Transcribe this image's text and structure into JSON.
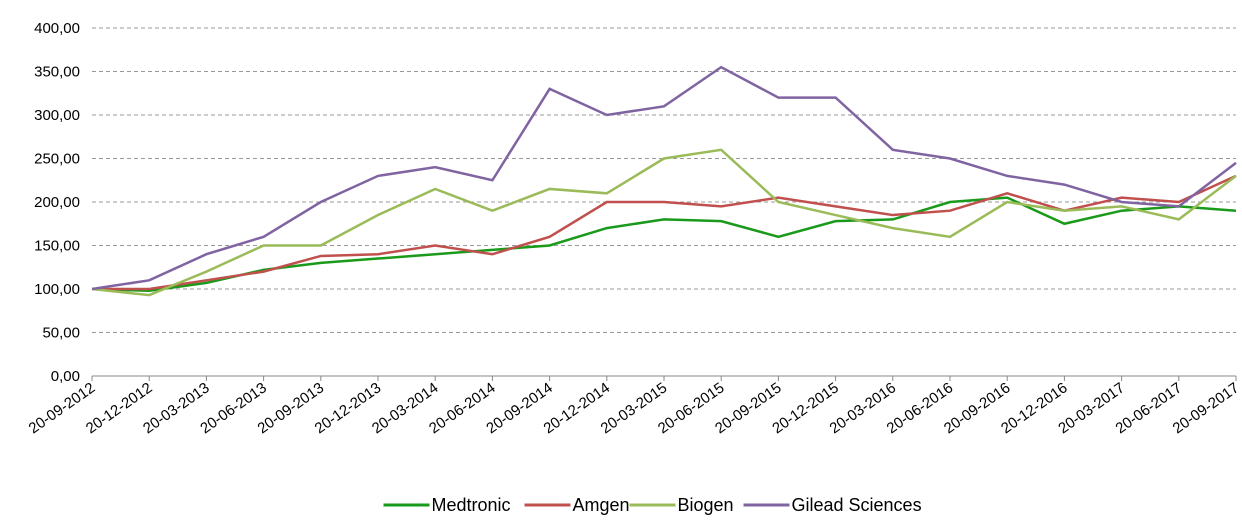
{
  "chart_data": {
    "type": "line",
    "categories": [
      "20-09-2012",
      "20-12-2012",
      "20-03-2013",
      "20-06-2013",
      "20-09-2013",
      "20-12-2013",
      "20-03-2014",
      "20-06-2014",
      "20-09-2014",
      "20-12-2014",
      "20-03-2015",
      "20-06-2015",
      "20-09-2015",
      "20-12-2015",
      "20-03-2016",
      "20-06-2016",
      "20-09-2016",
      "20-12-2016",
      "20-03-2017",
      "20-06-2017",
      "20-09-2017"
    ],
    "series": [
      {
        "name": "Medtronic",
        "color": "#1a9a1a",
        "values": [
          100,
          98,
          107,
          122,
          130,
          135,
          140,
          145,
          150,
          170,
          180,
          178,
          160,
          178,
          180,
          200,
          205,
          175,
          190,
          195,
          190
        ]
      },
      {
        "name": "Amgen",
        "color": "#c0504d",
        "values": [
          100,
          100,
          110,
          120,
          138,
          140,
          150,
          140,
          160,
          200,
          200,
          195,
          205,
          195,
          185,
          190,
          210,
          190,
          205,
          200,
          230
        ]
      },
      {
        "name": "Biogen",
        "color": "#9bbb59",
        "values": [
          100,
          93,
          120,
          150,
          150,
          185,
          215,
          190,
          215,
          210,
          250,
          260,
          200,
          185,
          170,
          160,
          200,
          190,
          195,
          180,
          230
        ]
      },
      {
        "name": "Gilead Sciences",
        "color": "#8064a2",
        "values": [
          100,
          110,
          140,
          160,
          200,
          230,
          240,
          225,
          330,
          300,
          310,
          355,
          320,
          320,
          260,
          250,
          230,
          220,
          200,
          195,
          245
        ]
      }
    ],
    "ylim": [
      0,
      400
    ],
    "yticks": [
      {
        "value": 0,
        "label": "0,00"
      },
      {
        "value": 50,
        "label": "50,00"
      },
      {
        "value": 100,
        "label": "100,00"
      },
      {
        "value": 150,
        "label": "150,00"
      },
      {
        "value": 200,
        "label": "200,00"
      },
      {
        "value": 250,
        "label": "250,00"
      },
      {
        "value": 300,
        "label": "300,00"
      },
      {
        "value": 350,
        "label": "350,00"
      },
      {
        "value": 400,
        "label": "400,00"
      }
    ],
    "grid": true,
    "legend": "bottom"
  }
}
